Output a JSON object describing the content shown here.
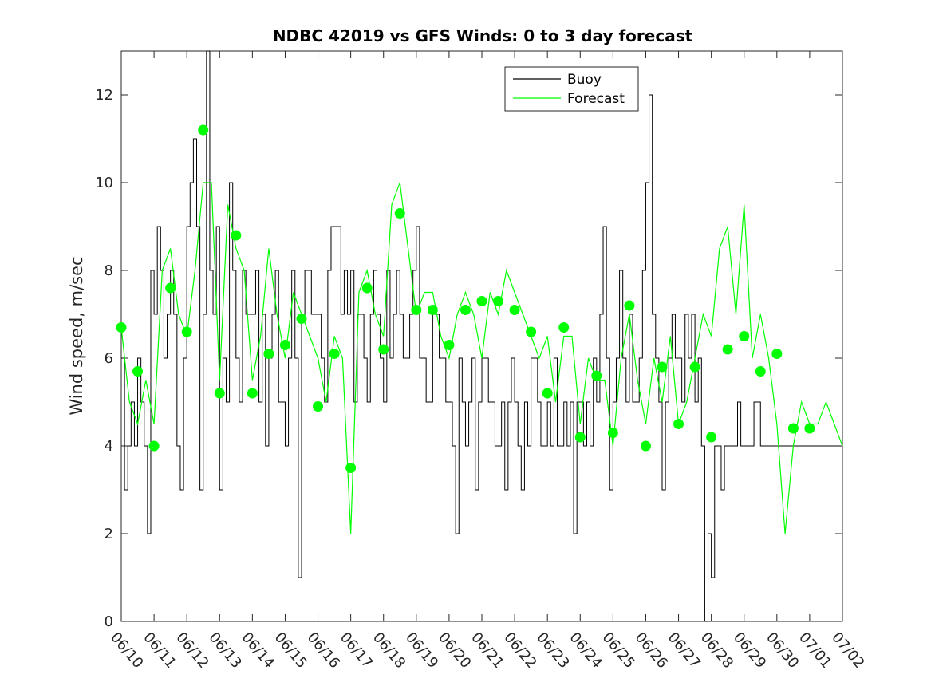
{
  "chart_data": {
    "type": "line",
    "title": "NDBC 42019 vs GFS Winds: 0 to 3 day forecast",
    "xlabel": "",
    "ylabel": "Wind speed, m/sec",
    "x_tick_labels": [
      "06/10",
      "06/11",
      "06/12",
      "06/13",
      "06/14",
      "06/15",
      "06/16",
      "06/17",
      "06/18",
      "06/19",
      "06/20",
      "06/21",
      "06/22",
      "06/23",
      "06/24",
      "06/25",
      "06/26",
      "06/27",
      "06/28",
      "06/29",
      "06/30",
      "07/01",
      "07/02"
    ],
    "y_ticks": [
      0,
      2,
      4,
      6,
      8,
      10,
      12
    ],
    "xlim": [
      0,
      22
    ],
    "ylim": [
      0,
      13
    ],
    "x_units": "days since 06/10",
    "legend": {
      "position": "top-center",
      "entries": [
        "Buoy",
        "Forecast"
      ]
    },
    "colors": {
      "buoy": "#000000",
      "forecast": "#00ff00",
      "markers": "#00ff00"
    },
    "series": [
      {
        "name": "Buoy",
        "x": [
          0,
          0.1,
          0.2,
          0.3,
          0.4,
          0.5,
          0.6,
          0.7,
          0.8,
          0.9,
          1.0,
          1.1,
          1.2,
          1.3,
          1.4,
          1.5,
          1.6,
          1.7,
          1.8,
          1.9,
          2.0,
          2.1,
          2.2,
          2.3,
          2.4,
          2.5,
          2.6,
          2.7,
          2.8,
          2.9,
          3.0,
          3.1,
          3.2,
          3.3,
          3.4,
          3.5,
          3.6,
          3.7,
          3.8,
          3.9,
          4.0,
          4.1,
          4.2,
          4.3,
          4.4,
          4.5,
          4.6,
          4.7,
          4.8,
          4.9,
          5.0,
          5.1,
          5.2,
          5.3,
          5.4,
          5.5,
          5.6,
          5.7,
          5.8,
          5.9,
          6.0,
          6.1,
          6.2,
          6.3,
          6.4,
          6.5,
          6.6,
          6.7,
          6.8,
          6.9,
          7.0,
          7.1,
          7.2,
          7.3,
          7.4,
          7.5,
          7.6,
          7.7,
          7.8,
          7.9,
          8.0,
          8.1,
          8.2,
          8.3,
          8.4,
          8.5,
          8.6,
          8.7,
          8.8,
          8.9,
          9.0,
          9.1,
          9.2,
          9.3,
          9.4,
          9.5,
          9.6,
          9.7,
          9.8,
          9.9,
          10.0,
          10.1,
          10.2,
          10.3,
          10.4,
          10.5,
          10.6,
          10.7,
          10.8,
          10.9,
          11.0,
          11.1,
          11.2,
          11.3,
          11.4,
          11.5,
          11.6,
          11.7,
          11.8,
          11.9,
          12.0,
          12.1,
          12.2,
          12.3,
          12.4,
          12.5,
          12.6,
          12.7,
          12.8,
          12.9,
          13.0,
          13.1,
          13.2,
          13.3,
          13.4,
          13.5,
          13.6,
          13.7,
          13.8,
          13.9,
          14.0,
          14.1,
          14.2,
          14.3,
          14.4,
          14.5,
          14.6,
          14.7,
          14.8,
          14.9,
          15.0,
          15.1,
          15.2,
          15.3,
          15.4,
          15.5,
          15.6,
          15.7,
          15.8,
          15.9,
          16.0,
          16.1,
          16.2,
          16.3,
          16.4,
          16.5,
          16.6,
          16.7,
          16.8,
          16.9,
          17.0,
          17.1,
          17.2,
          17.3,
          17.4,
          17.5,
          17.6,
          17.7,
          17.8,
          17.9,
          18.0,
          18.1,
          18.2,
          18.3,
          18.4,
          18.5,
          18.6,
          18.7,
          18.8,
          18.9,
          19.0,
          19.1,
          19.2,
          19.3,
          19.4,
          19.5,
          19.6,
          19.7,
          19.8,
          19.9,
          20.0,
          20.1,
          20.2,
          20.3,
          20.4,
          20.5,
          20.6,
          20.7,
          20.8,
          20.9,
          21.0,
          21.1,
          21.2,
          21.3,
          21.4,
          21.5,
          21.6,
          21.7,
          21.8,
          21.9,
          22.0
        ],
        "values": [
          6,
          3,
          4,
          5,
          4,
          6,
          5,
          4,
          2,
          8,
          7,
          9,
          8,
          6,
          7,
          8,
          7,
          4,
          3,
          6,
          9,
          10,
          11,
          9,
          3,
          7,
          13,
          8,
          7,
          9,
          3,
          6,
          5,
          10,
          8,
          6,
          5,
          8,
          7,
          7,
          7,
          8,
          5,
          7,
          4,
          6,
          7,
          8,
          5,
          5,
          4,
          6,
          8,
          6,
          1,
          7,
          8,
          8,
          7,
          7,
          7,
          6,
          5,
          8,
          9,
          9,
          9,
          7,
          8,
          7,
          8,
          5,
          7,
          7,
          6,
          5,
          7,
          8,
          7,
          6,
          5,
          8,
          6,
          7,
          8,
          7,
          6,
          6,
          7,
          8,
          9,
          6,
          6,
          5,
          5,
          7,
          7,
          6,
          6,
          5,
          5,
          4,
          2,
          6,
          5,
          4,
          5,
          6,
          3,
          5,
          6,
          6,
          5,
          5,
          4,
          4,
          5,
          3,
          5,
          6,
          5,
          4,
          3,
          5,
          4,
          6,
          6,
          5,
          4,
          4,
          5,
          4,
          6,
          4,
          4,
          5,
          4,
          5,
          2,
          5,
          5,
          4,
          5,
          4,
          6,
          5,
          7,
          9,
          6,
          3,
          5,
          6,
          8,
          6,
          5,
          7,
          5,
          5,
          6,
          8,
          10,
          12,
          7,
          6,
          5,
          3,
          5,
          6,
          7,
          6,
          6,
          5,
          7,
          6,
          7,
          5,
          6,
          4,
          0,
          2,
          1,
          4,
          4,
          3,
          4,
          4,
          4,
          4,
          5,
          4,
          4,
          4,
          4,
          5,
          5,
          4,
          4,
          4,
          4,
          4,
          4,
          4,
          4,
          4,
          4,
          4,
          4,
          4,
          4,
          4,
          4,
          4,
          4,
          4,
          4,
          4,
          4,
          4,
          4,
          4,
          4
        ]
      },
      {
        "name": "Forecast",
        "x": [
          0,
          0.25,
          0.5,
          0.75,
          1.0,
          1.25,
          1.5,
          1.75,
          2.0,
          2.25,
          2.5,
          2.75,
          3.0,
          3.25,
          3.5,
          3.75,
          4.0,
          4.25,
          4.5,
          4.75,
          5.0,
          5.25,
          5.5,
          5.75,
          6.0,
          6.25,
          6.5,
          6.75,
          7.0,
          7.25,
          7.5,
          7.75,
          8.0,
          8.25,
          8.5,
          8.75,
          9.0,
          9.25,
          9.5,
          9.75,
          10.0,
          10.25,
          10.5,
          10.75,
          11.0,
          11.25,
          11.5,
          11.75,
          12.0,
          12.25,
          12.5,
          12.75,
          13.0,
          13.25,
          13.5,
          13.75,
          14.0,
          14.25,
          14.5,
          14.75,
          15.0,
          15.25,
          15.5,
          15.75,
          16.0,
          16.25,
          16.5,
          16.75,
          17.0,
          17.25,
          17.5,
          17.75,
          18.0,
          18.25,
          18.5,
          18.75,
          19.0,
          19.25,
          19.5,
          19.75,
          20.0,
          20.25,
          20.5,
          20.75,
          21.0,
          21.25,
          21.5,
          21.75,
          22.0
        ],
        "values": [
          6.7,
          5.0,
          4.5,
          5.5,
          4.5,
          8.0,
          8.5,
          7.0,
          6.5,
          8.0,
          10.0,
          10.0,
          5.5,
          9.5,
          8.5,
          8.0,
          5.5,
          6.5,
          8.5,
          7.0,
          6.0,
          7.5,
          7.0,
          6.5,
          6.0,
          5.0,
          6.5,
          6.0,
          2.0,
          7.5,
          8.0,
          7.0,
          6.5,
          9.5,
          10.0,
          8.5,
          7.0,
          7.5,
          7.5,
          6.5,
          6.0,
          7.0,
          7.5,
          7.0,
          6.0,
          7.5,
          7.0,
          8.0,
          7.5,
          7.0,
          6.5,
          6.0,
          6.5,
          5.0,
          6.5,
          6.5,
          4.5,
          6.0,
          5.5,
          5.5,
          4.0,
          6.0,
          7.0,
          5.5,
          4.5,
          6.0,
          5.0,
          6.5,
          4.5,
          5.0,
          6.0,
          7.0,
          6.5,
          8.5,
          9.0,
          7.0,
          9.5,
          6.0,
          7.0,
          6.0,
          4.5,
          2.0,
          4.0,
          5.0,
          4.5,
          4.5,
          5.0,
          4.5,
          4.0
        ]
      },
      {
        "name": "",
        "type": "scatter",
        "x": [
          0,
          0.5,
          1.0,
          1.5,
          2.0,
          2.5,
          3.0,
          3.5,
          4.0,
          4.5,
          5.0,
          5.5,
          6.0,
          6.5,
          7.0,
          7.5,
          8.0,
          8.5,
          9.0,
          9.5,
          10.0,
          10.5,
          11.0,
          11.5,
          12.0,
          12.5,
          13.0,
          13.5,
          14.0,
          14.5,
          15.0,
          15.5,
          16.0,
          16.5,
          17.0,
          17.5,
          18.0,
          18.5,
          19.0,
          19.5,
          20.0,
          20.5,
          21.0
        ],
        "values": [
          6.7,
          5.7,
          4.0,
          7.6,
          6.6,
          11.2,
          5.2,
          8.8,
          5.2,
          6.1,
          6.3,
          6.9,
          4.9,
          6.1,
          3.5,
          7.6,
          6.2,
          9.3,
          7.1,
          7.1,
          6.3,
          7.1,
          7.3,
          7.3,
          7.1,
          6.6,
          5.2,
          6.7,
          4.2,
          5.6,
          4.3,
          7.2,
          4.0,
          5.8,
          4.5,
          5.8,
          4.2,
          6.2,
          6.5,
          5.7,
          6.1,
          4.4,
          4.4
        ]
      }
    ]
  }
}
